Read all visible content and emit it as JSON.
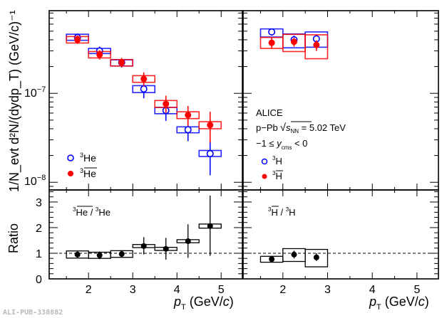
{
  "chart_data": [
    {
      "type": "scatter",
      "panel": "spectra-helium",
      "ylabel": "1/N_evt d²N/(dydp_T) (GeV/c)⁻¹",
      "yscale": "log",
      "ylim": [
        8.2e-09,
        8.5e-07
      ],
      "xlim": [
        1.11,
        5.48
      ],
      "y_ticks": [
        {
          "value": 1e-07,
          "label_base": "10",
          "label_exp": "−7"
        },
        {
          "value": 1e-08,
          "label_base": "10",
          "label_exp": "−8"
        }
      ],
      "legend_position": "bottom-left",
      "series": [
        {
          "name": "3He",
          "label_sup": "3",
          "label_main": "He",
          "bar": false,
          "marker": "open-circle",
          "color": "#0000ff",
          "x": [
            1.75,
            2.25,
            2.75,
            3.25,
            3.75,
            4.25,
            4.75
          ],
          "y": [
            4.25e-07,
            3e-07,
            2.22e-07,
            1.12e-07,
            6.4e-08,
            3.9e-08,
            2.1e-08
          ],
          "stat_lo": [
            3.8e-07,
            2.65e-07,
            1.95e-07,
            8.8e-08,
            4.9e-08,
            2.9e-08,
            1.2e-08
          ],
          "stat_hi": [
            4.7e-07,
            3.35e-07,
            2.45e-07,
            1.35e-07,
            7.8e-08,
            4.9e-08,
            3e-08
          ],
          "syst_lo": [
            3.95e-07,
            2.8e-07,
            2.03e-07,
            1.02e-07,
            5.9e-08,
            3.6e-08,
            1.95e-08
          ],
          "syst_hi": [
            4.62e-07,
            3.2e-07,
            2.38e-07,
            1.22e-07,
            6.95e-08,
            4.2e-08,
            2.28e-08
          ]
        },
        {
          "name": "3He-bar",
          "label_sup": "3",
          "label_main": "He",
          "bar": true,
          "marker": "filled-circle",
          "color": "#ff0000",
          "x": [
            1.75,
            2.25,
            2.75,
            3.25,
            3.75,
            4.25,
            4.75
          ],
          "y": [
            4e-07,
            2.72e-07,
            2.22e-07,
            1.45e-07,
            7.6e-08,
            5.7e-08,
            4.4e-08
          ],
          "stat_lo": [
            3.6e-07,
            2.4e-07,
            1.97e-07,
            1.2e-07,
            6e-08,
            4.3e-08,
            2.8e-08
          ],
          "stat_hi": [
            4.45e-07,
            3.05e-07,
            2.5e-07,
            1.72e-07,
            9.4e-08,
            7.2e-08,
            6.2e-08
          ],
          "syst_lo": [
            3.68e-07,
            2.5e-07,
            2.03e-07,
            1.33e-07,
            6.95e-08,
            5.2e-08,
            4e-08
          ],
          "syst_hi": [
            4.35e-07,
            2.95e-07,
            2.4e-07,
            1.58e-07,
            8.3e-08,
            6.2e-08,
            4.8e-08
          ]
        }
      ]
    },
    {
      "type": "scatter",
      "panel": "spectra-triton",
      "yscale": "log",
      "ylim": [
        8.2e-09,
        8.5e-07
      ],
      "xlim": [
        1.11,
        5.48
      ],
      "legend_position": "bottom-left",
      "annotations": {
        "experiment": "ALICE",
        "system": "p−Pb",
        "sqrt_sym": "√",
        "s_main": "s",
        "s_sub": "NN",
        "energy": " = 5.02 TeV",
        "rap_left": "−1 ≤ ",
        "y_main": "y",
        "y_sub": "cms",
        "rap_right": " < 0"
      },
      "series": [
        {
          "name": "3H",
          "label_sup": "3",
          "label_main": "H",
          "bar": false,
          "marker": "open-circle",
          "color": "#0000ff",
          "x": [
            1.75,
            2.25,
            2.75
          ],
          "y": [
            4.9e-07,
            4e-07,
            4.1e-07
          ],
          "stat_lo": [
            4.45e-07,
            3.55e-07,
            3.6e-07
          ],
          "stat_hi": [
            5.35e-07,
            4.45e-07,
            4.6e-07
          ],
          "syst_lo": [
            4.3e-07,
            3.25e-07,
            3.3e-07
          ],
          "syst_hi": [
            5.3e-07,
            4.65e-07,
            4.9e-07
          ]
        },
        {
          "name": "3H-bar",
          "label_sup": "3",
          "label_main": "H",
          "bar": true,
          "marker": "filled-circle",
          "color": "#ff0000",
          "x": [
            1.75,
            2.25,
            2.75
          ],
          "y": [
            3.7e-07,
            3.8e-07,
            3.5e-07
          ],
          "stat_lo": [
            3.2e-07,
            3.35e-07,
            3e-07
          ],
          "stat_hi": [
            4.2e-07,
            4.2e-07,
            3.95e-07
          ],
          "syst_lo": [
            3.2e-07,
            2.95e-07,
            2.45e-07
          ],
          "syst_hi": [
            4.25e-07,
            4.6e-07,
            4.55e-07
          ]
        }
      ]
    },
    {
      "type": "scatter",
      "panel": "ratio-helium",
      "ylabel": "Ratio",
      "xlabel_main": "p",
      "xlabel_sub": "T",
      "xlabel_unit_a": " (GeV/",
      "xlabel_unit_c": "c",
      "xlabel_unit_b": ")",
      "ylim": [
        0,
        3.47
      ],
      "xlim": [
        1.11,
        5.48
      ],
      "x_ticks": [
        "2",
        "3",
        "4",
        "5"
      ],
      "y_ticks": [
        "0",
        "1",
        "2",
        "3"
      ],
      "reference_line": 1,
      "label": {
        "num_sup": "3",
        "num_main": "He",
        "sep": " / ",
        "den_sup": "3",
        "den_main": "He"
      },
      "x": [
        1.75,
        2.25,
        2.75,
        3.25,
        3.75,
        4.25,
        4.75
      ],
      "y": [
        0.95,
        0.92,
        0.97,
        1.28,
        1.17,
        1.47,
        2.06
      ],
      "stat_lo": [
        0.83,
        0.77,
        0.85,
        0.95,
        0.75,
        0.82,
        0.9
      ],
      "stat_hi": [
        1.07,
        1.07,
        1.12,
        1.63,
        1.6,
        2.13,
        3.25
      ],
      "syst_lo": [
        0.81,
        0.8,
        0.84,
        1.22,
        1.11,
        1.41,
        1.98
      ],
      "syst_hi": [
        1.09,
        1.04,
        1.1,
        1.34,
        1.23,
        1.53,
        2.14
      ],
      "color": "#000000"
    },
    {
      "type": "scatter",
      "panel": "ratio-triton",
      "xlabel_main": "p",
      "xlabel_sub": "T",
      "xlabel_unit_a": " (GeV/",
      "xlabel_unit_c": "c",
      "xlabel_unit_b": ")",
      "ylim": [
        0,
        3.47
      ],
      "xlim": [
        1.11,
        5.48
      ],
      "x_ticks": [
        "2",
        "3",
        "4",
        "5"
      ],
      "reference_line": 1,
      "label": {
        "num_sup": "3",
        "num_main": "H",
        "sep": " / ",
        "den_sup": "3",
        "den_main": "H"
      },
      "x": [
        1.75,
        2.25,
        2.75
      ],
      "y": [
        0.77,
        0.95,
        0.84
      ],
      "stat_lo": [
        0.65,
        0.8,
        0.7
      ],
      "stat_hi": [
        0.9,
        1.1,
        1.0
      ],
      "syst_lo": [
        0.65,
        0.68,
        0.47
      ],
      "syst_hi": [
        0.88,
        1.18,
        1.15
      ],
      "color": "#000000"
    }
  ],
  "footer": {
    "publication_id": "ALI-PUB-338882"
  }
}
